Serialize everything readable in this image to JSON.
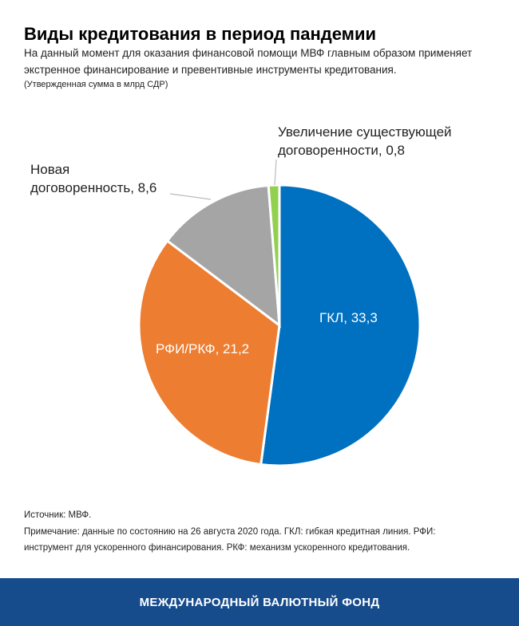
{
  "chart_data": {
    "type": "pie",
    "title": "Виды кредитования в период пандемии",
    "subtitle": "На данный момент для оказания финансовой помощи МВФ главным образом применяет экстренное финансирование и превентивные  инструменты  кредитования.",
    "unit_note": "(Утвержденная сумма в млрд СДР)",
    "values": [
      33.3,
      21.2,
      8.6,
      0.8
    ],
    "value_labels": [
      "ГКЛ, 33,3",
      "РФИ/РКФ, 21,2",
      "Новая договоренность, 8,6",
      "Увеличение существующей договоренности, 0,8"
    ],
    "colors": [
      "#0070c0",
      "#ed7d31",
      "#a5a5a5",
      "#92d050"
    ],
    "source": "Источник: МВФ.",
    "note": "Примечание: данные по состоянию на 26 августа 2020 года.  ГКЛ: гибкая кредитная линия. РФИ: инструмент для ускоренного финансирования. РКФ: механизм ускоренного кредитования.",
    "footer": "МЕЖДУНАРОДНЫЙ ВАЛЮТНЫЙ ФОНД"
  }
}
